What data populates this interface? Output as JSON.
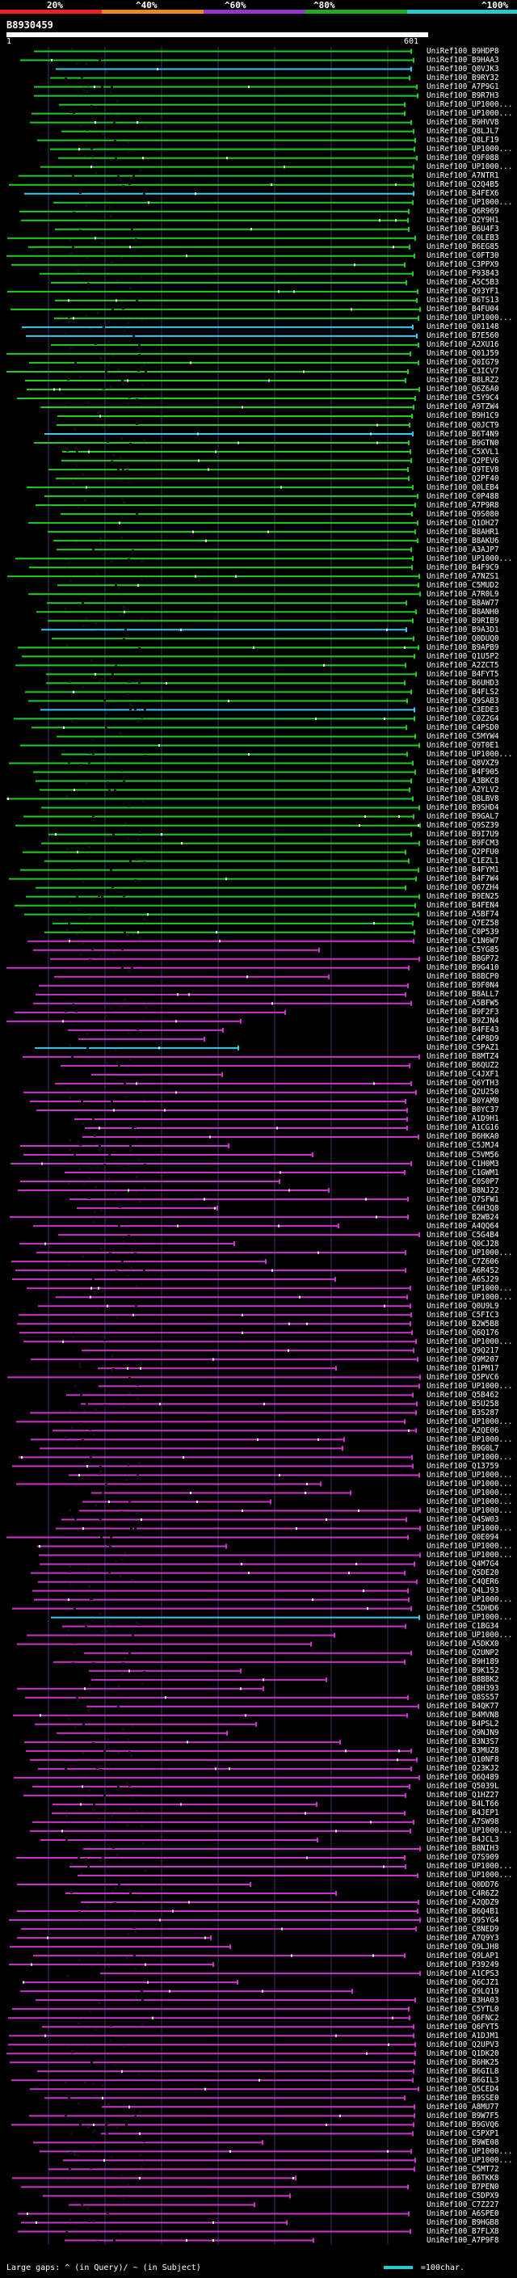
{
  "query_id": "B8930459",
  "ruler": {
    "start": "1",
    "end": "601"
  },
  "scale_labels": [
    "20%",
    "^40%",
    "^60%",
    "^80%",
    "^100%"
  ],
  "colors": {
    "band_red": "#ee2222",
    "band_orange": "#ee8822",
    "band_purple": "#9933cc",
    "band_green": "#22aa22",
    "band_cyan": "#22cccc",
    "line_green": "#22cc22",
    "line_magenta": "#cc33cc",
    "line_cyan": "#33ccee",
    "guide": "#333366",
    "text": "#ffffff"
  },
  "legend": {
    "text": "Large gaps: ^ (in Query)/ ~ (in Subject)",
    "scale_text": "=100char."
  },
  "hits": [
    "UniRef100_B9HDP8",
    "UniRef100_B9HAA3",
    "UniRef100_Q0VJK3",
    "UniRef100_B9RY32",
    "UniRef100_A7P9G1",
    "UniRef100_B9R7H3",
    "UniRef100_UP1000...",
    "UniRef100_UP1000...",
    "UniRef100_B9HVV8",
    "UniRef100_Q8LJL7",
    "UniRef100_Q8LF19",
    "UniRef100_UP1000...",
    "UniRef100_Q9F088",
    "UniRef100_UP1000...",
    "UniRef100_A7NTR1",
    "UniRef100_Q2Q4B5",
    "UniRef100_B4FEX6",
    "UniRef100_UP1000...",
    "UniRef100_Q6R969",
    "UniRef100_Q2Y9H1",
    "UniRef100_B6U4F3",
    "UniRef100_C0LEB3",
    "UniRef100_B6EG85",
    "UniRef100_C0FT30",
    "UniRef100_C3PPX9",
    "UniRef100_P93843",
    "UniRef100_A5C5B3",
    "UniRef100_Q93YF1",
    "UniRef100_B6TS13",
    "UniRef100_B4FU04",
    "UniRef100_UP1000...",
    "UniRef100_Q01148",
    "UniRef100_B7E560",
    "UniRef100_A2XU16",
    "UniRef100_Q01J59",
    "UniRef100_Q0IG79",
    "UniRef100_C3ICV7",
    "UniRef100_B8LRZ2",
    "UniRef100_Q6Z6A0",
    "UniRef100_C5Y9C4",
    "UniRef100_A9TZW4",
    "UniRef100_B9H1C9",
    "UniRef100_Q0JCT9",
    "UniRef100_B6T4N9",
    "UniRef100_B9GTN0",
    "UniRef100_C5XVL1",
    "UniRef100_Q2PEV6",
    "UniRef100_Q9TEV8",
    "UniRef100_Q2PF40",
    "UniRef100_Q0LEB4",
    "UniRef100_C0P488",
    "UniRef100_A7P9R8",
    "UniRef100_Q9S080",
    "UniRef100_Q1OH27",
    "UniRef100_B8AHR1",
    "UniRef100_B8AKU6",
    "UniRef100_A3AJP7",
    "UniRef100_UP1000...",
    "UniRef100_B4F9C9",
    "UniRef100_A7NZS1",
    "UniRef100_C5MUD2",
    "UniRef100_A7R0L9",
    "UniRef100_B8AW77",
    "UniRef100_B8ANH0",
    "UniRef100_B9RIB9",
    "UniRef100_B9A3D1",
    "UniRef100_Q0DUQ0",
    "UniRef100_B9APB9",
    "UniRef100_Q1U5P2",
    "UniRef100_A2ZCT5",
    "UniRef100_B4FYT5",
    "UniRef100_B6UHD3",
    "UniRef100_B4FLS2",
    "UniRef100_Q9SAB3",
    "UniRef100_C3EDE3",
    "UniRef100_C0Z2G4",
    "UniRef100_C4PSD0",
    "UniRef100_C5MYW4",
    "UniRef100_Q9T0E1",
    "UniRef100_UP1000...",
    "UniRef100_Q8VXZ9",
    "UniRef100_B4F905",
    "UniRef100_A3BKC8",
    "UniRef100_A2YLV2",
    "UniRef100_Q8LBV8",
    "UniRef100_B9SHD4",
    "UniRef100_B9GAL7",
    "UniRef100_Q9SZ39",
    "UniRef100_B9I7U9",
    "UniRef100_B9FCM3",
    "UniRef100_Q2PFU0",
    "UniRef100_C1EZL1",
    "UniRef100_B4FYM1",
    "UniRef100_B4F7W4",
    "UniRef100_Q67ZH4",
    "UniRef100_B9EN25",
    "UniRef100_B4FEN4",
    "UniRef100_A5BF74",
    "UniRef100_Q7EZ58",
    "UniRef100_C0P539",
    "UniRef100_C1N6W7",
    "UniRef100_C5YG85",
    "UniRef100_B8GP72",
    "UniRef100_B9G410",
    "UniRef100_B8BCP0",
    "UniRef100_B9F0N4",
    "UniRef100_B8ALL7",
    "UniRef100_A5BFW5",
    "UniRef100_B9F2F3",
    "UniRef100_B9ZJN4",
    "UniRef100_B4FE43",
    "UniRef100_C4P8D9",
    "UniRef100_C5PAZ1",
    "UniRef100_B8MTZ4",
    "UniRef100_B6QUZ2",
    "UniRef100_C4JXF1",
    "UniRef100_Q6YTH3",
    "UniRef100_Q2U250",
    "UniRef100_B0YAM0",
    "UniRef100_B0YC37",
    "UniRef100_A1D9H1",
    "UniRef100_A1CG16",
    "UniRef100_B6HKA0",
    "UniRef100_C5JMJ4",
    "UniRef100_C5VM56",
    "UniRef100_C1H0M3",
    "UniRef100_C1GWM1",
    "UniRef100_C0S0P7",
    "UniRef100_B8NJ22",
    "UniRef100_Q7SFW1",
    "UniRef100_C6H3Q8",
    "UniRef100_B2WB24",
    "UniRef100_A4QQ64",
    "UniRef100_C5G4B4",
    "UniRef100_Q0CJ28",
    "UniRef100_UP1000...",
    "UniRef100_C7Z606",
    "UniRef100_A6R452",
    "UniRef100_A6SJ29",
    "UniRef100_UP1000...",
    "UniRef100_UP1000...",
    "UniRef100_Q0U9L9",
    "UniRef100_C5FIC3",
    "UniRef100_B2W5B8",
    "UniRef100_Q6Q176",
    "UniRef100_UP1000...",
    "UniRef100_Q9Q217",
    "UniRef100_Q9M207",
    "UniRef100_Q1PM17",
    "UniRef100_Q5PVC6",
    "UniRef100_UP1000...",
    "UniRef100_Q5B462",
    "UniRef100_B5U258",
    "UniRef100_B3S287",
    "UniRef100_UP1000...",
    "UniRef100_A2QE06",
    "UniRef100_UP1000...",
    "UniRef100_B9G0L7",
    "UniRef100_UP1000...",
    "UniRef100_Q13759",
    "UniRef100_UP1000...",
    "UniRef100_UP1000...",
    "UniRef100_UP1000...",
    "UniRef100_UP1000...",
    "UniRef100_UP1000...",
    "UniRef100_Q4SW03",
    "UniRef100_UP1000...",
    "UniRef100_Q0E094",
    "UniRef100_UP1000...",
    "UniRef100_UP1000...",
    "UniRef100_Q4M7G4",
    "UniRef100_Q5DE20",
    "UniRef100_C4QER6",
    "UniRef100_Q4LJ93",
    "UniRef100_UP1000...",
    "UniRef100_C5DHD6",
    "UniRef100_UP1000...",
    "UniRef100_C1BG34",
    "UniRef100_UP1000...",
    "UniRef100_A5DKX0",
    "UniRef100_Q2UNP2",
    "UniRef100_B9H189",
    "UniRef100_B9K152",
    "UniRef100_B8BBK2",
    "UniRef100_Q8H393",
    "UniRef100_Q8SS57",
    "UniRef100_B4QK77",
    "UniRef100_B4MVN8",
    "UniRef100_B4PSL2",
    "UniRef100_Q9NJN9",
    "UniRef100_B3N3S7",
    "UniRef100_B3MUZ8",
    "UniRef100_Q10NF8",
    "UniRef100_Q23KJ2",
    "UniRef100_Q6Q489",
    "UniRef100_Q5039L",
    "UniRef100_Q1HZ27",
    "UniRef100_B4LT66",
    "UniRef100_B4JEP1",
    "UniRef100_A7SW98",
    "UniRef100_UP1000...",
    "UniRef100_B4JCL3",
    "UniRef100_B8NIH3",
    "UniRef100_Q7S909",
    "UniRef100_UP1000...",
    "UniRef100_UP1000...",
    "UniRef100_Q0DD76",
    "UniRef100_C4R6Z2",
    "UniRef100_A2QDZ9",
    "UniRef100_B6Q4B1",
    "UniRef100_Q9SYG4",
    "UniRef100_C8NED9",
    "UniRef100_A7Q9Y3",
    "UniRef100_Q9LJH8",
    "UniRef100_Q9LAP1",
    "UniRef100_P39249",
    "UniRef100_A1CPS3",
    "UniRef100_Q6CJZ1",
    "UniRef100_Q9LQ19",
    "UniRef100_B3HA03",
    "UniRef100_C5YTL0",
    "UniRef100_Q6FNC2",
    "UniRef100_Q6FYT5",
    "UniRef100_A1DJM1",
    "UniRef100_Q2UPV3",
    "UniRef100_Q1DK20",
    "UniRef100_B6HK25",
    "UniRef100_B6GIL8",
    "UniRef100_B6GIL3",
    "UniRef100_Q5CED4",
    "UniRef100_B9SSE0",
    "UniRef100_A8MU77",
    "UniRef100_B9W7F5",
    "UniRef100_B9GVQ6",
    "UniRef100_C5PXP1",
    "UniRef100_B9WE08",
    "UniRef100_UP1000...",
    "UniRef100_UP1000...",
    "UniRef100_C5MT72",
    "UniRef100_B6TKK8",
    "UniRef100_B7PEN0",
    "UniRef100_C5DPX9",
    "UniRef100_C7Z227",
    "UniRef100_A6SPE0",
    "UniRef100_B9HGB8",
    "UniRef100_B7FLX8",
    "UniRef100_A7P9F8"
  ]
}
